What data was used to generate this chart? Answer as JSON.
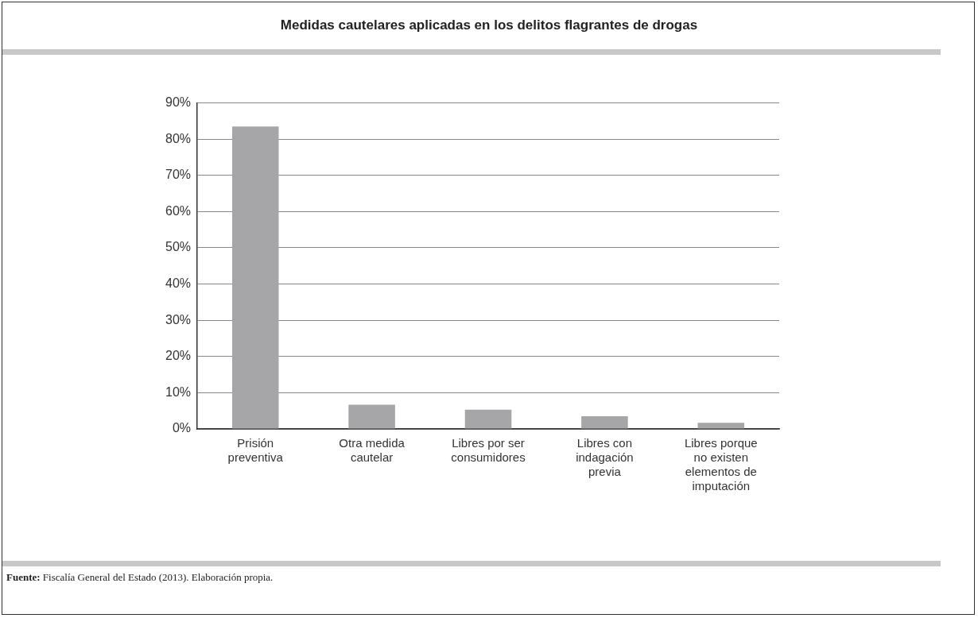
{
  "chart_data": {
    "type": "bar",
    "title": "Medidas cautelares aplicadas en los delitos flagrantes de drogas",
    "categories": [
      "Prisión preventiva",
      "Otra medida cautelar",
      "Libres por ser consumidores",
      "Libres con indagación previa",
      "Libres porque no existen elementos de imputación"
    ],
    "values": [
      83.5,
      6.7,
      5.3,
      3.5,
      1.7
    ],
    "color": "#a6a6a8",
    "ylim": [
      0,
      90
    ],
    "yticks": [
      {
        "value": 0,
        "label": "0%"
      },
      {
        "value": 10,
        "label": "10%"
      },
      {
        "value": 20,
        "label": "20%"
      },
      {
        "value": 30,
        "label": "30%"
      },
      {
        "value": 40,
        "label": "40%"
      },
      {
        "value": 50,
        "label": "50%"
      },
      {
        "value": 60,
        "label": "60%"
      },
      {
        "value": 70,
        "label": "70%"
      },
      {
        "value": 80,
        "label": "80%"
      },
      {
        "value": 90,
        "label": "90%"
      }
    ],
    "grid": "y",
    "legend": false,
    "annotations": [
      "Fuente: Fiscalía General del Estado (2013). Elaboración propia."
    ]
  }
}
